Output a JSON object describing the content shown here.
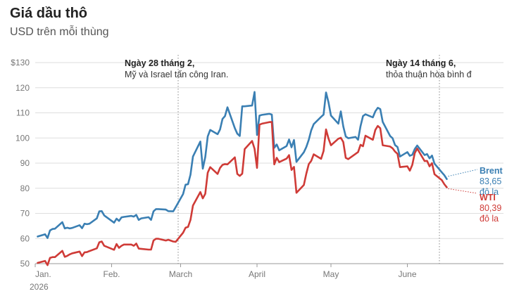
{
  "title": "Giá dầu thô",
  "subtitle": "USD trên mỗi thùng",
  "chart_data": {
    "type": "line",
    "title": "Giá dầu thô",
    "subtitle": "USD trên mỗi thùng",
    "y_tick_labels": [
      "50",
      "60",
      "70",
      "80",
      "90",
      "100",
      "110",
      "120",
      "$130"
    ],
    "y_ticks": [
      50,
      60,
      70,
      80,
      90,
      100,
      110,
      120,
      130
    ],
    "ylim": [
      50,
      130
    ],
    "x_tick_labels": [
      {
        "date": "2026-01-01",
        "label": "Jan."
      },
      {
        "date": "2026-02-01",
        "label": "Feb."
      },
      {
        "date": "2026-03-01",
        "label": "March"
      },
      {
        "date": "2026-04-01",
        "label": "April"
      },
      {
        "date": "2026-05-01",
        "label": "May"
      },
      {
        "date": "2026-06-01",
        "label": "June"
      }
    ],
    "x_year_label": "2026",
    "grid": true,
    "annotations": [
      {
        "date": "2026-02-28",
        "title": "Ngày 28 tháng 2,",
        "text": "Mỹ và Israel tấn công Iran."
      },
      {
        "date": "2026-06-14",
        "title": "Ngày 14 tháng 6,",
        "text": "thỏa thuận hòa bình đ"
      }
    ],
    "series": [
      {
        "name": "Brent",
        "color": "#3a7fb3",
        "end_label": [
          "Brent",
          "83,65",
          "đô la"
        ],
        "points": [
          [
            "2026-01-02",
            60.8
          ],
          [
            "2026-01-05",
            61.7
          ],
          [
            "2026-01-06",
            60.2
          ],
          [
            "2026-01-07",
            63.2
          ],
          [
            "2026-01-08",
            63.8
          ],
          [
            "2026-01-09",
            63.9
          ],
          [
            "2026-01-12",
            66.5
          ],
          [
            "2026-01-13",
            64.0
          ],
          [
            "2026-01-14",
            64.3
          ],
          [
            "2026-01-15",
            64.0
          ],
          [
            "2026-01-16",
            64.2
          ],
          [
            "2026-01-19",
            65.3
          ],
          [
            "2026-01-20",
            64.1
          ],
          [
            "2026-01-21",
            65.9
          ],
          [
            "2026-01-22",
            65.7
          ],
          [
            "2026-01-23",
            65.9
          ],
          [
            "2026-01-26",
            68.0
          ],
          [
            "2026-01-27",
            70.8
          ],
          [
            "2026-01-28",
            70.9
          ],
          [
            "2026-01-29",
            69.2
          ],
          [
            "2026-02-02",
            66.3
          ],
          [
            "2026-02-03",
            67.9
          ],
          [
            "2026-02-04",
            67.0
          ],
          [
            "2026-02-05",
            68.4
          ],
          [
            "2026-02-06",
            68.6
          ],
          [
            "2026-02-09",
            69.0
          ],
          [
            "2026-02-10",
            68.7
          ],
          [
            "2026-02-11",
            69.4
          ],
          [
            "2026-02-12",
            67.4
          ],
          [
            "2026-02-13",
            68.0
          ],
          [
            "2026-02-16",
            68.5
          ],
          [
            "2026-02-17",
            67.4
          ],
          [
            "2026-02-18",
            70.8
          ],
          [
            "2026-02-19",
            71.7
          ],
          [
            "2026-02-20",
            71.7
          ],
          [
            "2026-02-23",
            71.5
          ],
          [
            "2026-02-24",
            70.9
          ],
          [
            "2026-02-26",
            70.8
          ],
          [
            "2026-02-27",
            72.5
          ],
          [
            "2026-03-02",
            77.7
          ],
          [
            "2026-03-03",
            81.4
          ],
          [
            "2026-03-04",
            81.6
          ],
          [
            "2026-03-05",
            85.4
          ],
          [
            "2026-03-06",
            92.6
          ],
          [
            "2026-03-09",
            98.6
          ],
          [
            "2026-03-10",
            87.8
          ],
          [
            "2026-03-11",
            92.4
          ],
          [
            "2026-03-12",
            100.6
          ],
          [
            "2026-03-13",
            103.2
          ],
          [
            "2026-03-16",
            101.5
          ],
          [
            "2026-03-17",
            103.4
          ],
          [
            "2026-03-18",
            107.6
          ],
          [
            "2026-03-19",
            108.7
          ],
          [
            "2026-03-20",
            112.2
          ],
          [
            "2026-03-23",
            103.9
          ],
          [
            "2026-03-24",
            101.7
          ],
          [
            "2026-03-25",
            100.8
          ],
          [
            "2026-03-26",
            112.6
          ],
          [
            "2026-03-27",
            112.6
          ],
          [
            "2026-03-30",
            112.9
          ],
          [
            "2026-03-31",
            118.3
          ],
          [
            "2026-04-01",
            101.2
          ],
          [
            "2026-04-02",
            108.9
          ],
          [
            "2026-04-03",
            109.2
          ],
          [
            "2026-04-06",
            109.6
          ],
          [
            "2026-04-07",
            109.3
          ],
          [
            "2026-04-08",
            96.1
          ],
          [
            "2026-04-09",
            97.4
          ],
          [
            "2026-04-10",
            95.1
          ],
          [
            "2026-04-13",
            96.8
          ],
          [
            "2026-04-14",
            99.4
          ],
          [
            "2026-04-15",
            96.3
          ],
          [
            "2026-04-16",
            99.2
          ],
          [
            "2026-04-17",
            90.5
          ],
          [
            "2026-04-20",
            94.3
          ],
          [
            "2026-04-21",
            96.4
          ],
          [
            "2026-04-22",
            99.3
          ],
          [
            "2026-04-23",
            103.1
          ],
          [
            "2026-04-24",
            105.5
          ],
          [
            "2026-04-27",
            108.4
          ],
          [
            "2026-04-28",
            109.3
          ],
          [
            "2026-04-29",
            118.1
          ],
          [
            "2026-04-30",
            114.2
          ],
          [
            "2026-05-01",
            108.9
          ],
          [
            "2026-05-04",
            105.7
          ],
          [
            "2026-05-05",
            110.6
          ],
          [
            "2026-05-06",
            104.6
          ],
          [
            "2026-05-07",
            100.6
          ],
          [
            "2026-05-08",
            99.9
          ],
          [
            "2026-05-11",
            100.4
          ],
          [
            "2026-05-12",
            99.3
          ],
          [
            "2026-05-13",
            104.7
          ],
          [
            "2026-05-14",
            108.7
          ],
          [
            "2026-05-15",
            109.4
          ],
          [
            "2026-05-18",
            108.2
          ],
          [
            "2026-05-19",
            110.6
          ],
          [
            "2026-05-20",
            112.0
          ],
          [
            "2026-05-21",
            111.5
          ],
          [
            "2026-05-22",
            106.4
          ],
          [
            "2026-05-25",
            100.8
          ],
          [
            "2026-05-26",
            99.9
          ],
          [
            "2026-05-27",
            97.2
          ],
          [
            "2026-05-28",
            96.4
          ],
          [
            "2026-05-29",
            92.6
          ],
          [
            "2026-06-01",
            94.4
          ],
          [
            "2026-06-02",
            92.9
          ],
          [
            "2026-06-03",
            93.3
          ],
          [
            "2026-06-04",
            95.6
          ],
          [
            "2026-06-05",
            97.0
          ],
          [
            "2026-06-08",
            93.2
          ],
          [
            "2026-06-09",
            93.6
          ],
          [
            "2026-06-10",
            91.9
          ],
          [
            "2026-06-11",
            93.0
          ],
          [
            "2026-06-12",
            89.8
          ],
          [
            "2026-06-15",
            86.3
          ],
          [
            "2026-06-16",
            85.2
          ],
          [
            "2026-06-17",
            83.65
          ]
        ]
      },
      {
        "name": "WTI",
        "color": "#cf3b37",
        "end_label": [
          "WTI",
          "80,39",
          "đô la"
        ],
        "points": [
          [
            "2026-01-02",
            50.3
          ],
          [
            "2026-01-05",
            51.1
          ],
          [
            "2026-01-06",
            49.4
          ],
          [
            "2026-01-07",
            52.3
          ],
          [
            "2026-01-08",
            52.6
          ],
          [
            "2026-01-09",
            52.6
          ],
          [
            "2026-01-12",
            55.1
          ],
          [
            "2026-01-13",
            52.7
          ],
          [
            "2026-01-14",
            53.1
          ],
          [
            "2026-01-15",
            53.7
          ],
          [
            "2026-01-16",
            54.1
          ],
          [
            "2026-01-19",
            54.8
          ],
          [
            "2026-01-20",
            53.0
          ],
          [
            "2026-01-21",
            54.5
          ],
          [
            "2026-01-22",
            54.6
          ],
          [
            "2026-01-23",
            55.0
          ],
          [
            "2026-01-26",
            56.1
          ],
          [
            "2026-01-27",
            58.5
          ],
          [
            "2026-01-28",
            58.8
          ],
          [
            "2026-01-29",
            57.1
          ],
          [
            "2026-02-02",
            55.5
          ],
          [
            "2026-02-03",
            57.8
          ],
          [
            "2026-02-04",
            56.3
          ],
          [
            "2026-02-05",
            57.1
          ],
          [
            "2026-02-06",
            57.6
          ],
          [
            "2026-02-09",
            57.6
          ],
          [
            "2026-02-10",
            57.1
          ],
          [
            "2026-02-11",
            58.0
          ],
          [
            "2026-02-12",
            56.0
          ],
          [
            "2026-02-13",
            55.9
          ],
          [
            "2026-02-16",
            55.6
          ],
          [
            "2026-02-17",
            55.6
          ],
          [
            "2026-02-18",
            59.2
          ],
          [
            "2026-02-19",
            59.9
          ],
          [
            "2026-02-20",
            59.9
          ],
          [
            "2026-02-23",
            59.2
          ],
          [
            "2026-02-24",
            59.5
          ],
          [
            "2026-02-26",
            58.8
          ],
          [
            "2026-02-27",
            58.7
          ],
          [
            "2026-03-02",
            62.3
          ],
          [
            "2026-03-03",
            64.3
          ],
          [
            "2026-03-04",
            64.6
          ],
          [
            "2026-03-05",
            67.4
          ],
          [
            "2026-03-06",
            73.1
          ],
          [
            "2026-03-09",
            78.5
          ],
          [
            "2026-03-10",
            76.0
          ],
          [
            "2026-03-11",
            77.8
          ],
          [
            "2026-03-12",
            86.2
          ],
          [
            "2026-03-13",
            88.4
          ],
          [
            "2026-03-16",
            85.7
          ],
          [
            "2026-03-17",
            88.1
          ],
          [
            "2026-03-18",
            89.3
          ],
          [
            "2026-03-19",
            89.6
          ],
          [
            "2026-03-20",
            89.5
          ],
          [
            "2026-03-23",
            92.3
          ],
          [
            "2026-03-24",
            85.7
          ],
          [
            "2026-03-25",
            84.9
          ],
          [
            "2026-03-26",
            85.8
          ],
          [
            "2026-03-27",
            95.6
          ],
          [
            "2026-03-30",
            98.8
          ],
          [
            "2026-03-31",
            95.7
          ],
          [
            "2026-04-01",
            88.1
          ],
          [
            "2026-04-02",
            105.3
          ],
          [
            "2026-04-03",
            105.7
          ],
          [
            "2026-04-06",
            106.3
          ],
          [
            "2026-04-07",
            106.4
          ],
          [
            "2026-04-08",
            89.5
          ],
          [
            "2026-04-09",
            92.1
          ],
          [
            "2026-04-10",
            90.4
          ],
          [
            "2026-04-13",
            91.8
          ],
          [
            "2026-04-14",
            93.2
          ],
          [
            "2026-04-15",
            87.3
          ],
          [
            "2026-04-16",
            88.5
          ],
          [
            "2026-04-17",
            78.2
          ],
          [
            "2026-04-20",
            81.3
          ],
          [
            "2026-04-21",
            85.8
          ],
          [
            "2026-04-22",
            89.6
          ],
          [
            "2026-04-23",
            90.9
          ],
          [
            "2026-04-24",
            93.5
          ],
          [
            "2026-04-27",
            91.7
          ],
          [
            "2026-04-28",
            94.8
          ],
          [
            "2026-04-29",
            103.4
          ],
          [
            "2026-04-30",
            99.8
          ],
          [
            "2026-05-01",
            97.1
          ],
          [
            "2026-05-04",
            99.7
          ],
          [
            "2026-05-05",
            100.1
          ],
          [
            "2026-05-06",
            98.4
          ],
          [
            "2026-05-07",
            92.1
          ],
          [
            "2026-05-08",
            91.6
          ],
          [
            "2026-05-11",
            93.7
          ],
          [
            "2026-05-12",
            94.4
          ],
          [
            "2026-05-13",
            97.3
          ],
          [
            "2026-05-14",
            96.7
          ],
          [
            "2026-05-15",
            100.9
          ],
          [
            "2026-05-18",
            99.3
          ],
          [
            "2026-05-19",
            103.2
          ],
          [
            "2026-05-20",
            104.8
          ],
          [
            "2026-05-21",
            103.9
          ],
          [
            "2026-05-22",
            97.1
          ],
          [
            "2026-05-25",
            96.6
          ],
          [
            "2026-05-26",
            95.9
          ],
          [
            "2026-05-27",
            94.6
          ],
          [
            "2026-05-28",
            93.7
          ],
          [
            "2026-05-29",
            88.4
          ],
          [
            "2026-06-01",
            88.7
          ],
          [
            "2026-06-02",
            87.0
          ],
          [
            "2026-06-03",
            89.3
          ],
          [
            "2026-06-04",
            94.0
          ],
          [
            "2026-06-05",
            95.8
          ],
          [
            "2026-06-08",
            90.8
          ],
          [
            "2026-06-09",
            90.9
          ],
          [
            "2026-06-10",
            88.7
          ],
          [
            "2026-06-11",
            90.0
          ],
          [
            "2026-06-12",
            85.6
          ],
          [
            "2026-06-15",
            83.2
          ],
          [
            "2026-06-16",
            81.6
          ],
          [
            "2026-06-17",
            80.39
          ]
        ]
      }
    ]
  }
}
